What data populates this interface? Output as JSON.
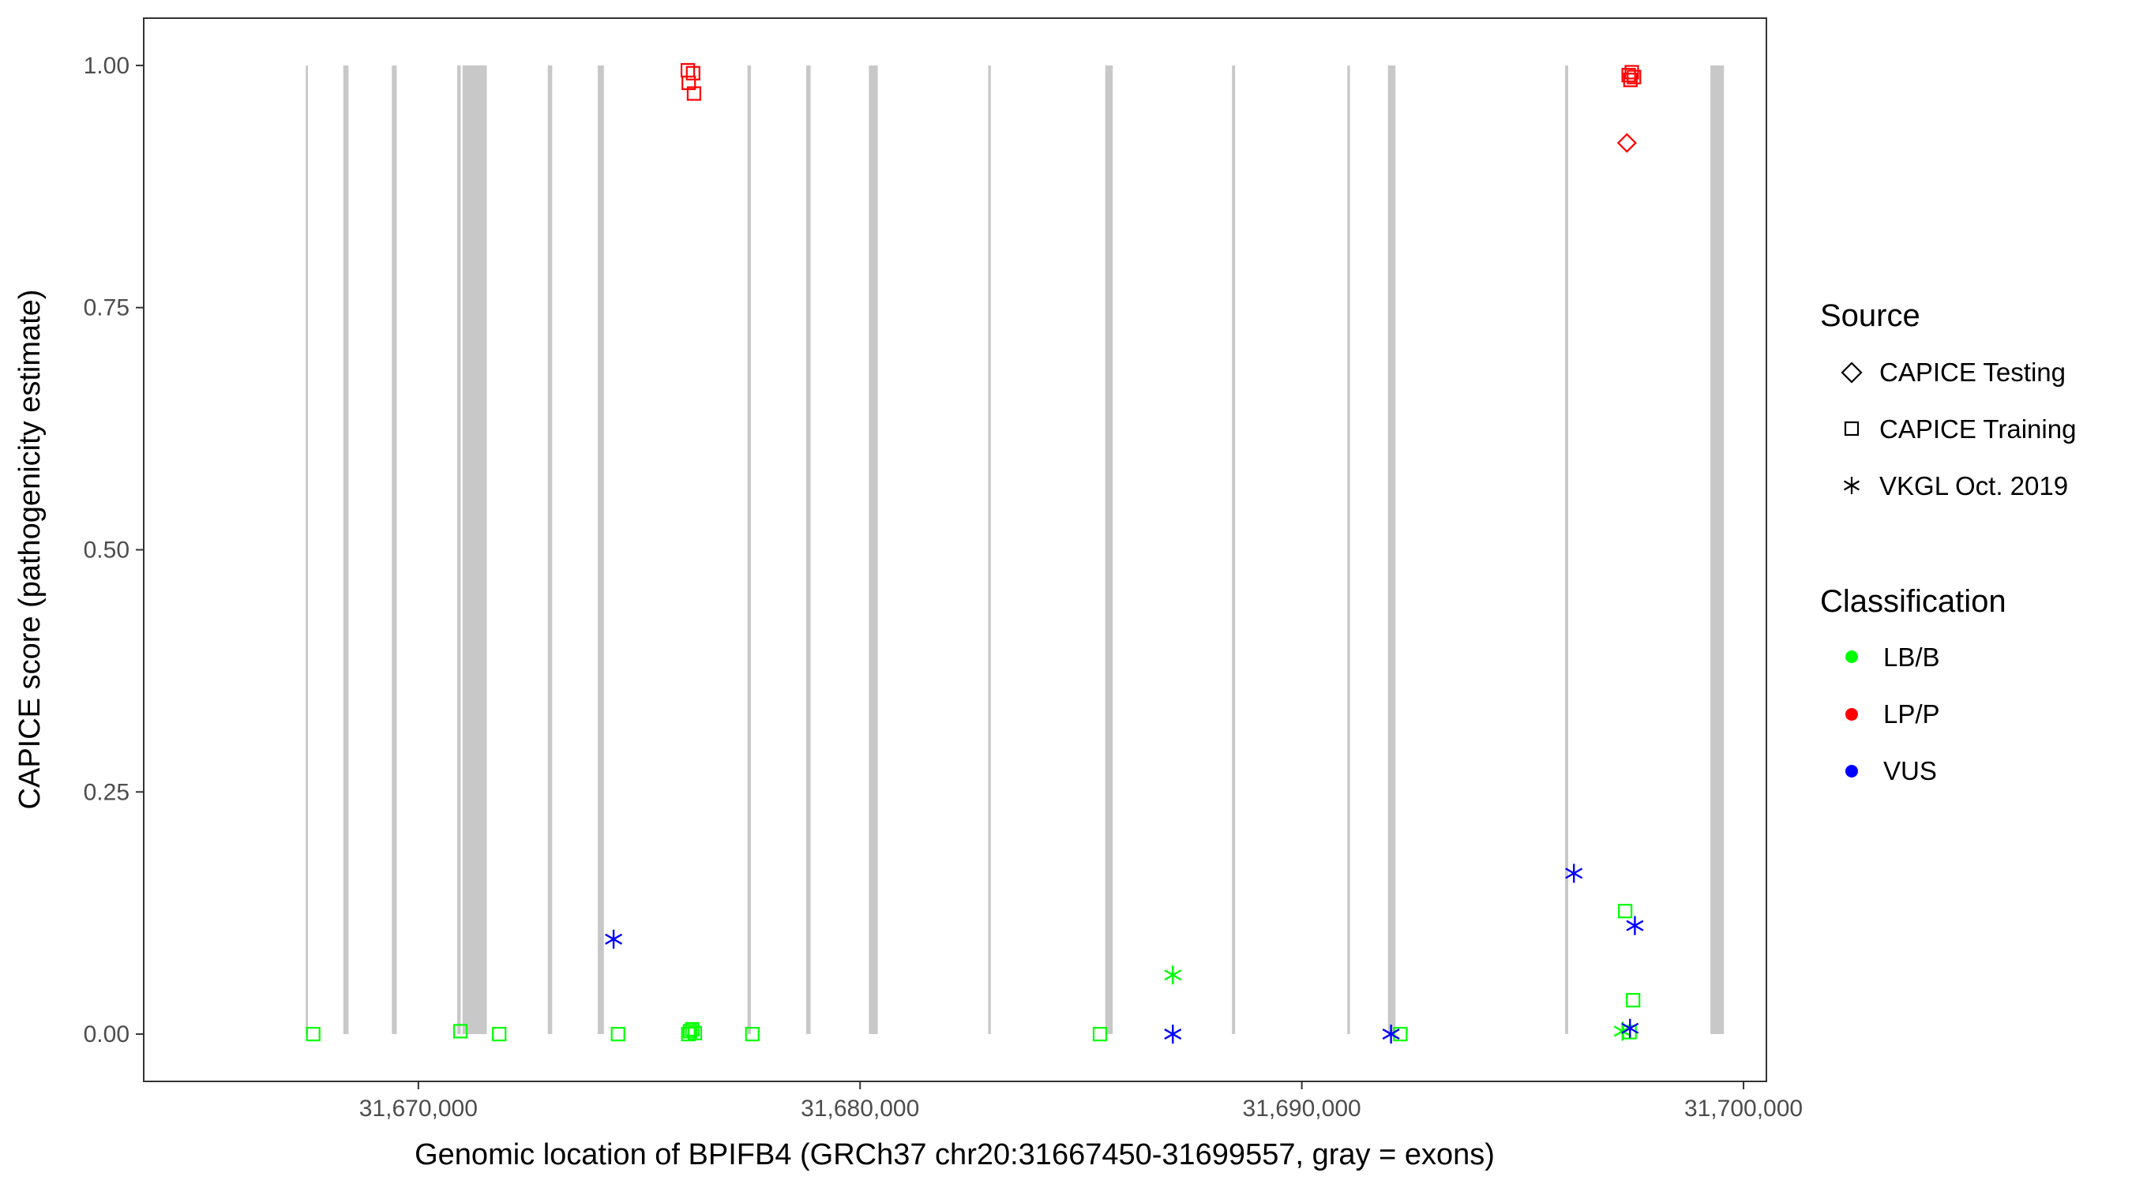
{
  "chart_data": {
    "type": "scatter",
    "title": "",
    "xlabel": "Genomic location of BPIFB4 (GRCh37 chr20:31667450-31699557, gray = exons)",
    "ylabel": "CAPICE score (pathogenicity estimate)",
    "xlim": [
      31663800,
      31700500
    ],
    "ylim": [
      -0.048,
      1.048
    ],
    "x_ticks": [
      31670000,
      31680000,
      31690000,
      31700000
    ],
    "x_tick_labels": [
      "31,670,000",
      "31,680,000",
      "31,690,000",
      "31,700,000"
    ],
    "y_ticks": [
      0,
      0.25,
      0.5,
      0.75,
      1.0
    ],
    "y_tick_labels": [
      "0.00",
      "0.25",
      "0.50",
      "0.75",
      "1.00"
    ],
    "grid": false,
    "exon_color": "#c8c8c8",
    "exons": [
      [
        31667450,
        31667500
      ],
      [
        31668300,
        31668420
      ],
      [
        31669400,
        31669510
      ],
      [
        31670880,
        31670960
      ],
      [
        31671000,
        31671550
      ],
      [
        31672930,
        31673030
      ],
      [
        31674060,
        31674200
      ],
      [
        31677450,
        31677530
      ],
      [
        31678780,
        31678880
      ],
      [
        31680200,
        31680400
      ],
      [
        31682900,
        31682960
      ],
      [
        31685550,
        31685720
      ],
      [
        31688420,
        31688490
      ],
      [
        31691030,
        31691090
      ],
      [
        31691950,
        31692120
      ],
      [
        31695960,
        31696030
      ],
      [
        31699250,
        31699557
      ]
    ],
    "legend_position": "right",
    "legend": {
      "source_title": "Source",
      "source_items": [
        {
          "label": "CAPICE Testing",
          "shape": "diamond"
        },
        {
          "label": "CAPICE Training",
          "shape": "square"
        },
        {
          "label": "VKGL Oct. 2019",
          "shape": "asterisk"
        }
      ],
      "class_title": "Classification",
      "class_items": [
        {
          "label": "LB/B",
          "color": "#00ff00"
        },
        {
          "label": "LP/P",
          "color": "#ff0000"
        },
        {
          "label": "VUS",
          "color": "#0000ff"
        }
      ]
    },
    "series": [
      {
        "name": "CAPICE Training",
        "shape": "square",
        "points": [
          {
            "x": 31667620,
            "y": 0.0,
            "cls": "LB/B"
          },
          {
            "x": 31670950,
            "y": 0.003,
            "cls": "LB/B"
          },
          {
            "x": 31671830,
            "y": 0.0,
            "cls": "LB/B"
          },
          {
            "x": 31674520,
            "y": 0.0,
            "cls": "LB/B"
          },
          {
            "x": 31676110,
            "y": 0.0,
            "cls": "LB/B"
          },
          {
            "x": 31676150,
            "y": 0.003,
            "cls": "LB/B"
          },
          {
            "x": 31676200,
            "y": 0.005,
            "cls": "LB/B"
          },
          {
            "x": 31676260,
            "y": 0.001,
            "cls": "LB/B"
          },
          {
            "x": 31677560,
            "y": 0.0,
            "cls": "LB/B"
          },
          {
            "x": 31685430,
            "y": 0.0,
            "cls": "LB/B"
          },
          {
            "x": 31692230,
            "y": 0.0,
            "cls": "LB/B"
          },
          {
            "x": 31697320,
            "y": 0.127,
            "cls": "LB/B"
          },
          {
            "x": 31697500,
            "y": 0.035,
            "cls": "LB/B"
          },
          {
            "x": 31697420,
            "y": 0.002,
            "cls": "LB/B"
          },
          {
            "x": 31676100,
            "y": 0.995,
            "cls": "LP/P"
          },
          {
            "x": 31676120,
            "y": 0.982,
            "cls": "LP/P"
          },
          {
            "x": 31676220,
            "y": 0.992,
            "cls": "LP/P"
          },
          {
            "x": 31676240,
            "y": 0.971,
            "cls": "LP/P"
          },
          {
            "x": 31697400,
            "y": 0.99,
            "cls": "LP/P"
          },
          {
            "x": 31697470,
            "y": 0.993,
            "cls": "LP/P"
          },
          {
            "x": 31697440,
            "y": 0.985,
            "cls": "LP/P"
          },
          {
            "x": 31697520,
            "y": 0.988,
            "cls": "LP/P"
          }
        ]
      },
      {
        "name": "CAPICE Testing",
        "shape": "diamond",
        "points": [
          {
            "x": 31697360,
            "y": 0.92,
            "cls": "LP/P"
          }
        ]
      },
      {
        "name": "VKGL Oct. 2019",
        "shape": "asterisk",
        "points": [
          {
            "x": 31674420,
            "y": 0.098,
            "cls": "VUS"
          },
          {
            "x": 31687080,
            "y": 0.061,
            "cls": "LB/B"
          },
          {
            "x": 31687080,
            "y": 0.0,
            "cls": "VUS"
          },
          {
            "x": 31692020,
            "y": 0.0,
            "cls": "VUS"
          },
          {
            "x": 31696160,
            "y": 0.166,
            "cls": "VUS"
          },
          {
            "x": 31697540,
            "y": 0.112,
            "cls": "VUS"
          },
          {
            "x": 31697260,
            "y": 0.003,
            "cls": "LB/B"
          },
          {
            "x": 31697430,
            "y": 0.006,
            "cls": "VUS"
          }
        ]
      }
    ]
  }
}
